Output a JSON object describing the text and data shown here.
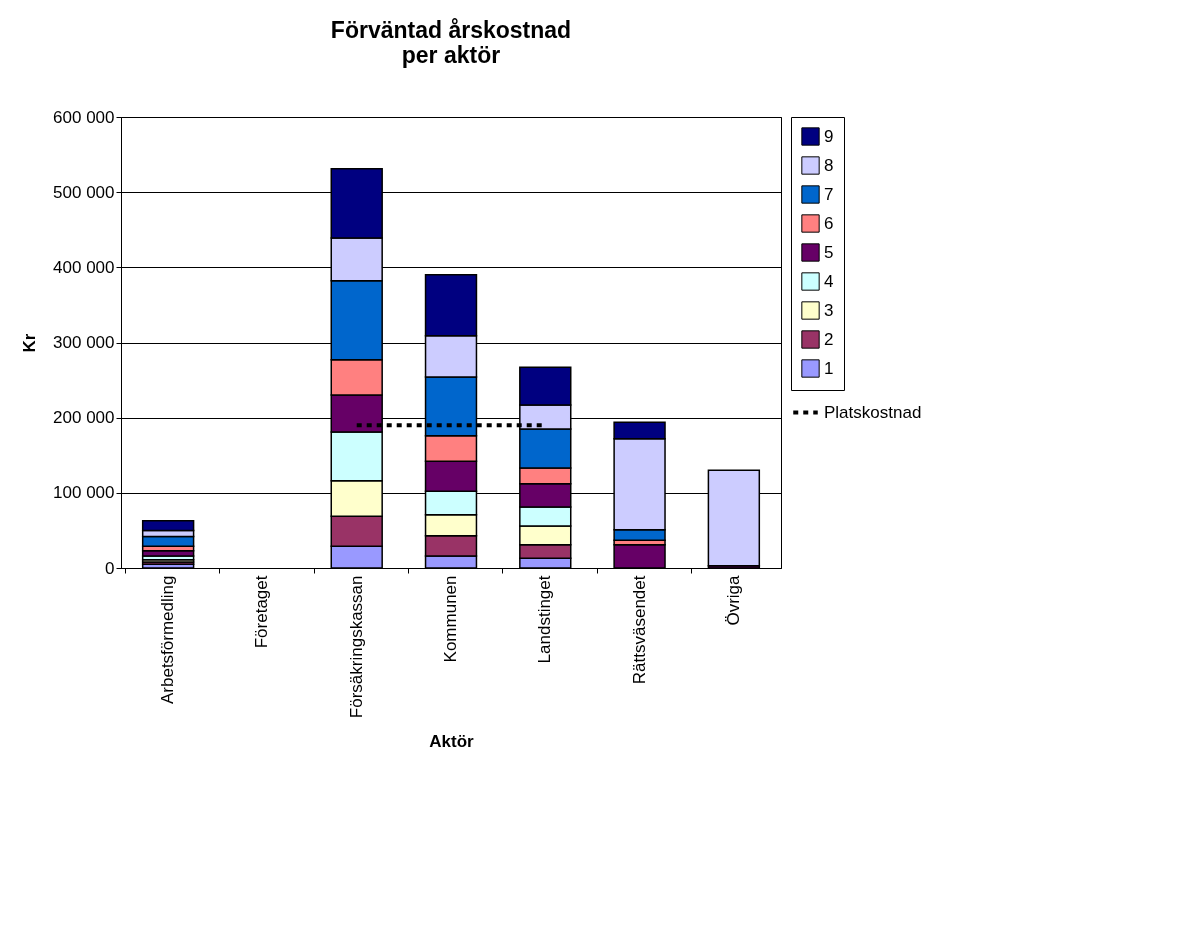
{
  "chart_data": {
    "type": "bar",
    "stacked": true,
    "title": "Förväntad årskostnad\nper aktör",
    "xlabel": "Aktör",
    "ylabel": "Kr",
    "categories": [
      "Arbetsförmedling",
      "Företaget",
      "Försäkringskassan",
      "Kommunen",
      "Landstinget",
      "Rättsväsendet",
      "Övriga"
    ],
    "series": [
      {
        "name": "1",
        "color": "#9999ff",
        "values": [
          5000,
          null,
          29000,
          16000,
          13000,
          null,
          null
        ]
      },
      {
        "name": "2",
        "color": "#993366",
        "values": [
          3000,
          null,
          40000,
          27000,
          18000,
          null,
          null
        ]
      },
      {
        "name": "3",
        "color": "#ffffcc",
        "values": [
          3000,
          null,
          47000,
          28000,
          25000,
          null,
          null
        ]
      },
      {
        "name": "4",
        "color": "#ccffff",
        "values": [
          5000,
          null,
          65000,
          31000,
          25000,
          null,
          null
        ]
      },
      {
        "name": "5",
        "color": "#660066",
        "values": [
          7000,
          null,
          49000,
          40000,
          31000,
          31000,
          3000
        ]
      },
      {
        "name": "6",
        "color": "#ff8080",
        "values": [
          6000,
          null,
          47000,
          34000,
          21000,
          6000,
          null
        ]
      },
      {
        "name": "7",
        "color": "#0066cc",
        "values": [
          13000,
          null,
          105000,
          78000,
          52000,
          14000,
          null
        ]
      },
      {
        "name": "8",
        "color": "#ccccff",
        "values": [
          8000,
          null,
          57000,
          55000,
          32000,
          121000,
          127000
        ]
      },
      {
        "name": "9",
        "color": "#000080",
        "values": [
          13000,
          null,
          92000,
          81000,
          50000,
          22000,
          null
        ]
      },
      {
        "name": "Platskostnad",
        "type": "line",
        "line_style": "dashed",
        "color": "#000000",
        "values": [
          null,
          null,
          190000,
          190000,
          190000,
          null,
          null
        ]
      }
    ],
    "ylim": [
      0,
      600000
    ],
    "yticks": [
      {
        "value": 0,
        "label": "0"
      },
      {
        "value": 100000,
        "label": "100 000"
      },
      {
        "value": 200000,
        "label": "200 000"
      },
      {
        "value": 300000,
        "label": "300 000"
      },
      {
        "value": 400000,
        "label": "400 000"
      },
      {
        "value": 500000,
        "label": "500 000"
      },
      {
        "value": 600000,
        "label": "600 000"
      }
    ],
    "grid": "y",
    "legend": "right"
  }
}
